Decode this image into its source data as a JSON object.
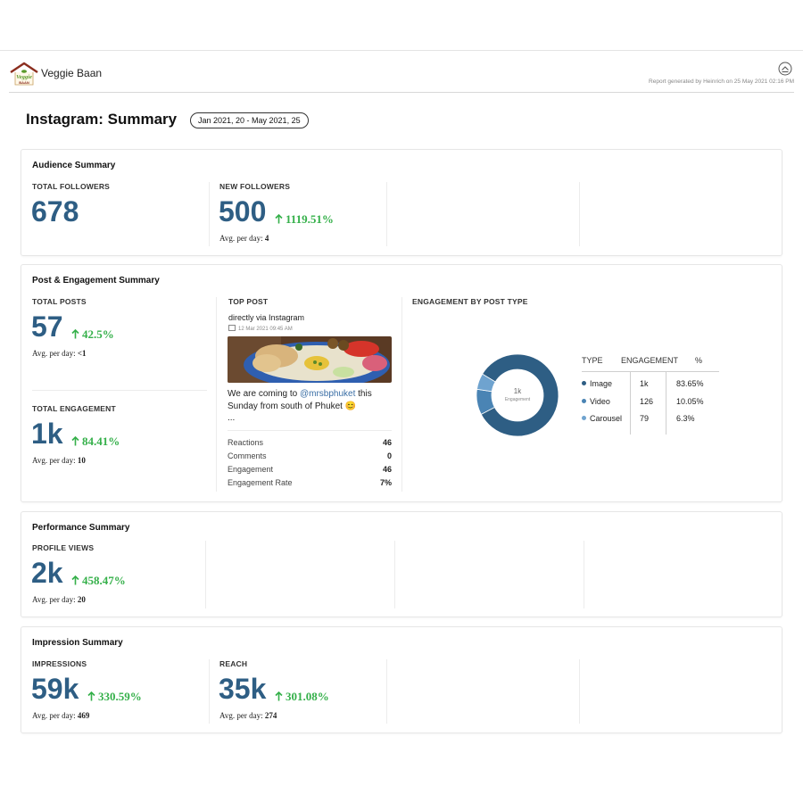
{
  "header": {
    "brand": "Veggie Baan",
    "logo_text": "Veggie BAAN",
    "generated": "Report generated by Heinrich on 25 May 2021 02:16 PM"
  },
  "page": {
    "title": "Instagram: Summary",
    "date_range": "Jan 2021, 20 - May 2021, 25"
  },
  "audience": {
    "title": "Audience Summary",
    "total_followers": {
      "label": "TOTAL FOLLOWERS",
      "value": "678"
    },
    "new_followers": {
      "label": "NEW FOLLOWERS",
      "value": "500",
      "change": "1119.51%",
      "avg_label": "Avg. per day:",
      "avg": "4"
    }
  },
  "engagement": {
    "title": "Post & Engagement Summary",
    "total_posts": {
      "label": "TOTAL POSTS",
      "value": "57",
      "change": "42.5%",
      "avg_label": "Avg. per day:",
      "avg": "<1"
    },
    "total_engagement": {
      "label": "TOTAL ENGAGEMENT",
      "value": "1k",
      "change": "84.41%",
      "avg_label": "Avg. per day:",
      "avg": "10"
    },
    "top_post": {
      "label": "TOP POST",
      "source": "directly via Instagram",
      "date": "12 Mar 2021 09:45 AM",
      "text_before": "We are coming to ",
      "mention": "@mrsbphuket",
      "text_after": " this Sunday from south of Phuket 😊",
      "ellipsis": "...",
      "stats": [
        {
          "label": "Reactions",
          "value": "46"
        },
        {
          "label": "Comments",
          "value": "0"
        },
        {
          "label": "Engagement",
          "value": "46"
        },
        {
          "label": "Engagement Rate",
          "value": "7%"
        }
      ]
    },
    "by_type": {
      "label": "ENGAGEMENT BY POST TYPE",
      "center_value": "1k",
      "center_label": "Engagement",
      "headers": [
        "TYPE",
        "ENGAGEMENT",
        "%"
      ],
      "rows": [
        {
          "type": "Image",
          "engagement": "1k",
          "percent": "83.65%",
          "share": 83.65,
          "color": "#2e5e84"
        },
        {
          "type": "Video",
          "engagement": "126",
          "percent": "10.05%",
          "share": 10.05,
          "color": "#4a84b4"
        },
        {
          "type": "Carousel",
          "engagement": "79",
          "percent": "6.3%",
          "share": 6.3,
          "color": "#6fa3cf"
        }
      ]
    }
  },
  "performance": {
    "title": "Performance Summary",
    "profile_views": {
      "label": "PROFILE VIEWS",
      "value": "2k",
      "change": "458.47%",
      "avg_label": "Avg. per day:",
      "avg": "20"
    }
  },
  "impressions": {
    "title": "Impression Summary",
    "impressions": {
      "label": "IMPRESSIONS",
      "value": "59k",
      "change": "330.59%",
      "avg_label": "Avg. per day:",
      "avg": "469"
    },
    "reach": {
      "label": "REACH",
      "value": "35k",
      "change": "301.08%",
      "avg_label": "Avg. per day:",
      "avg": "274"
    }
  },
  "colors": {
    "metric": "#2e5e84",
    "positive": "#35b04a",
    "brand_roof": "#8b2e1e",
    "brand_leaf": "#5a9a2a"
  }
}
